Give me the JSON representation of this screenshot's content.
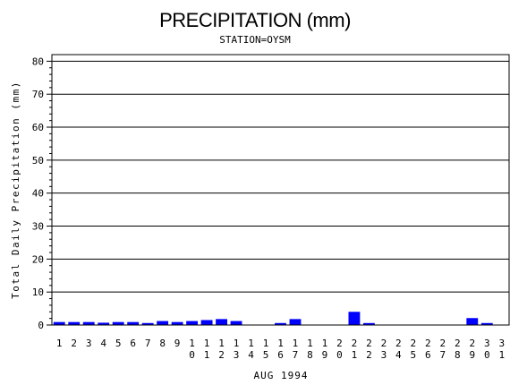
{
  "chart_data": {
    "type": "bar",
    "title": "PRECIPITATION (mm)",
    "subtitle": "STATION=OYSM",
    "xlabel": "AUG 1994",
    "ylabel": "Total Daily Precipitation (mm)",
    "ylim": [
      0,
      82
    ],
    "yticks": [
      0,
      10,
      20,
      30,
      40,
      50,
      60,
      70,
      80
    ],
    "grid": true,
    "categories": [
      "1",
      "2",
      "3",
      "4",
      "5",
      "6",
      "7",
      "8",
      "9",
      "10",
      "11",
      "12",
      "13",
      "14",
      "15",
      "16",
      "17",
      "18",
      "19",
      "20",
      "21",
      "22",
      "23",
      "24",
      "25",
      "26",
      "27",
      "28",
      "29",
      "30",
      "31"
    ],
    "values": [
      0.9,
      0.9,
      0.9,
      0.7,
      0.9,
      0.9,
      0.6,
      1.2,
      0.9,
      1.2,
      1.5,
      1.8,
      1.2,
      0,
      0,
      0.6,
      1.8,
      0,
      0,
      0,
      4.0,
      0.6,
      0,
      0,
      0,
      0,
      0,
      0,
      2.1,
      0.6,
      0
    ],
    "bar_color": "#0000ff"
  }
}
